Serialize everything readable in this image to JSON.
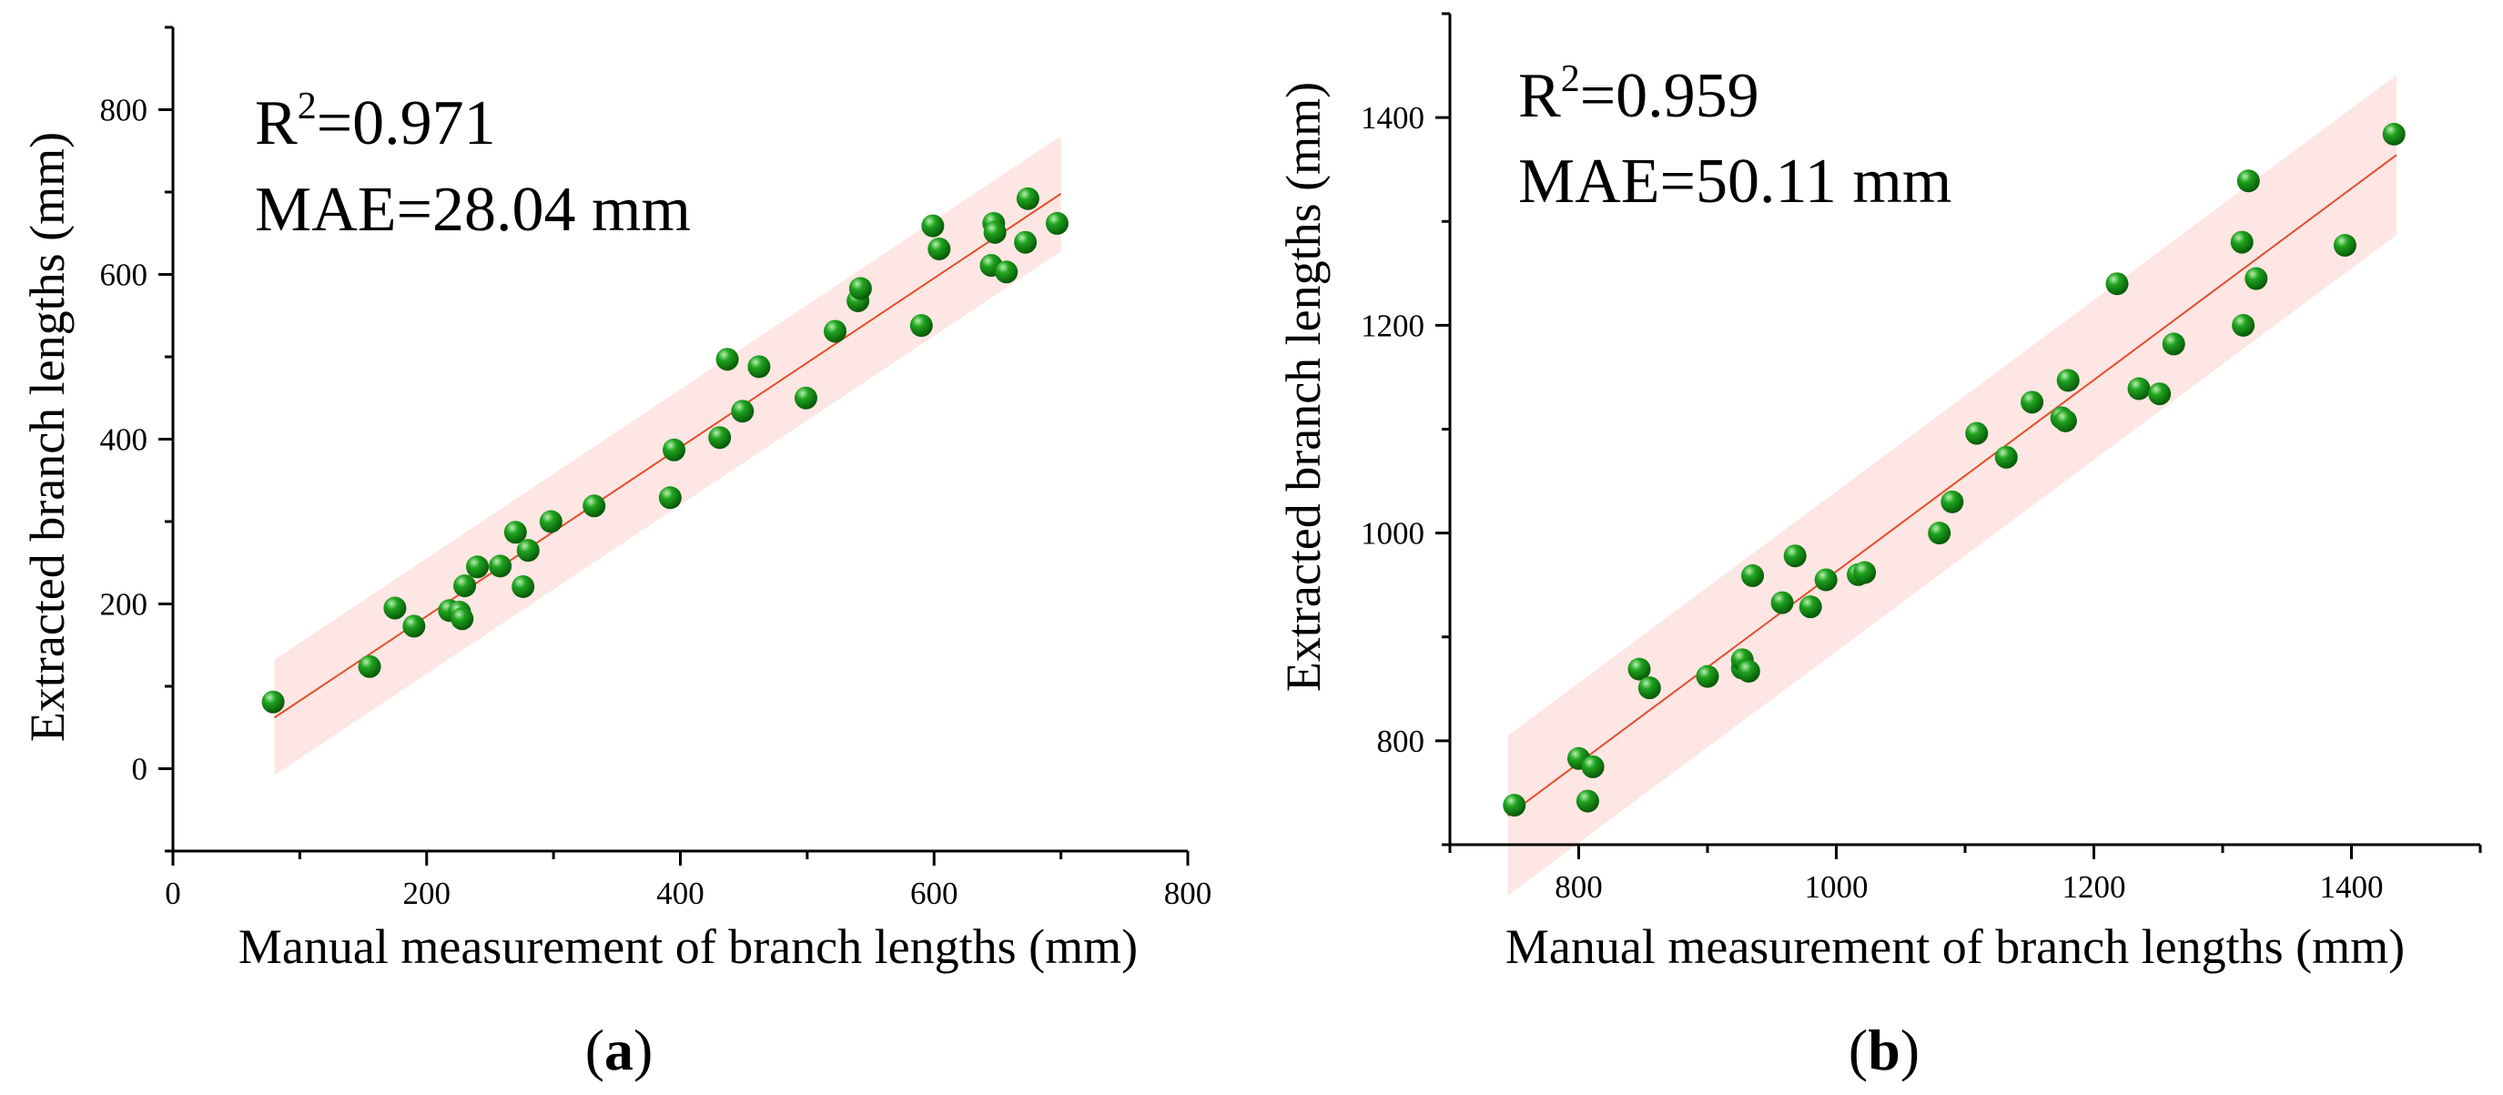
{
  "chart_data": [
    {
      "panel": "a",
      "type": "scatter",
      "label_prefix": "(",
      "label": "a",
      "label_suffix": ")",
      "xlabel": "Manual measurement of branch lengths (mm)",
      "ylabel": "Extracted branch lengths (mm)",
      "xlim": [
        0,
        800
      ],
      "ylim": [
        -100,
        900
      ],
      "xticks": [
        0,
        200,
        400,
        600,
        800
      ],
      "yticks": [
        0,
        200,
        400,
        600,
        800
      ],
      "stats": {
        "r2_prefix": "R",
        "r2_sup": "2",
        "r2_value": "=0.971",
        "mae": "MAE=28.04 mm"
      },
      "fit_line": {
        "x": [
          80,
          700
        ],
        "y": [
          62,
          698
        ]
      },
      "band_halfwidth": 70,
      "point_color": "#0a7a0a",
      "fit_color": "#e0502a",
      "band_color": "#fde6e4",
      "points": [
        [
          79,
          81
        ],
        [
          155,
          124
        ],
        [
          175,
          195
        ],
        [
          190,
          173
        ],
        [
          218,
          192
        ],
        [
          226,
          190
        ],
        [
          228,
          182
        ],
        [
          230,
          222
        ],
        [
          240,
          245
        ],
        [
          258,
          246
        ],
        [
          270,
          287
        ],
        [
          276,
          221
        ],
        [
          280,
          265
        ],
        [
          298,
          300
        ],
        [
          332,
          319
        ],
        [
          392,
          329
        ],
        [
          395,
          387
        ],
        [
          431,
          402
        ],
        [
          437,
          497
        ],
        [
          449,
          434
        ],
        [
          462,
          488
        ],
        [
          499,
          450
        ],
        [
          522,
          531
        ],
        [
          540,
          568
        ],
        [
          542,
          583
        ],
        [
          590,
          538
        ],
        [
          599,
          659
        ],
        [
          604,
          631
        ],
        [
          645,
          611
        ],
        [
          647,
          662
        ],
        [
          648,
          651
        ],
        [
          657,
          603
        ],
        [
          672,
          639
        ],
        [
          674,
          692
        ],
        [
          697,
          662
        ]
      ]
    },
    {
      "panel": "b",
      "type": "scatter",
      "label_prefix": "(",
      "label": "b",
      "label_suffix": ")",
      "xlabel": "Manual measurement of branch lengths (mm)",
      "ylabel": "Extracted branch lengths (mm)",
      "xlim": [
        700,
        1500
      ],
      "ylim": [
        700,
        1500
      ],
      "xticks": [
        800,
        1000,
        1200,
        1400
      ],
      "yticks": [
        800,
        1000,
        1200,
        1400
      ],
      "stats": {
        "r2_prefix": "R",
        "r2_sup": "2",
        "r2_value": "=0.959",
        "mae": "MAE=50.11 mm"
      },
      "fit_line": {
        "x": [
          745,
          1435
        ],
        "y": [
          728,
          1364
        ]
      },
      "band_halfwidth": 77,
      "point_color": "#0a7a0a",
      "fit_color": "#e0502a",
      "band_color": "#fde6e4",
      "points": [
        [
          750,
          738
        ],
        [
          800,
          783
        ],
        [
          807,
          742
        ],
        [
          811,
          775
        ],
        [
          847,
          869
        ],
        [
          855,
          851
        ],
        [
          900,
          862
        ],
        [
          927,
          870
        ],
        [
          927,
          878
        ],
        [
          932,
          867
        ],
        [
          935,
          959
        ],
        [
          958,
          933
        ],
        [
          968,
          978
        ],
        [
          980,
          929
        ],
        [
          992,
          955
        ],
        [
          1017,
          960
        ],
        [
          1022,
          962
        ],
        [
          1080,
          1000
        ],
        [
          1090,
          1030
        ],
        [
          1109,
          1096
        ],
        [
          1132,
          1073
        ],
        [
          1152,
          1126
        ],
        [
          1175,
          1111
        ],
        [
          1178,
          1108
        ],
        [
          1180,
          1147
        ],
        [
          1218,
          1240
        ],
        [
          1235,
          1139
        ],
        [
          1251,
          1134
        ],
        [
          1262,
          1182
        ],
        [
          1315,
          1280
        ],
        [
          1316,
          1200
        ],
        [
          1320,
          1339
        ],
        [
          1326,
          1245
        ],
        [
          1395,
          1277
        ],
        [
          1433,
          1384
        ]
      ]
    }
  ]
}
